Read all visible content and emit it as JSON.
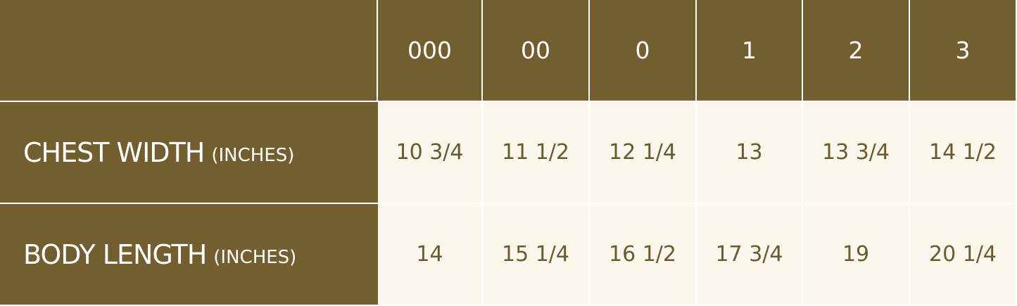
{
  "table": {
    "header": [
      "000",
      "00",
      "0",
      "1",
      "2",
      "3"
    ],
    "rows": [
      {
        "label": "CHEST WIDTH",
        "unit": "(INCHES)",
        "values": [
          "10 3/4",
          "11 1/2",
          "12 1/4",
          "13",
          "13 3/4",
          "14 1/2"
        ]
      },
      {
        "label": "BODY LENGTH",
        "unit": "(INCHES)",
        "values": [
          "14",
          "15 1/4",
          "16 1/2",
          "17 3/4",
          "19",
          "20 1/4"
        ]
      }
    ]
  }
}
